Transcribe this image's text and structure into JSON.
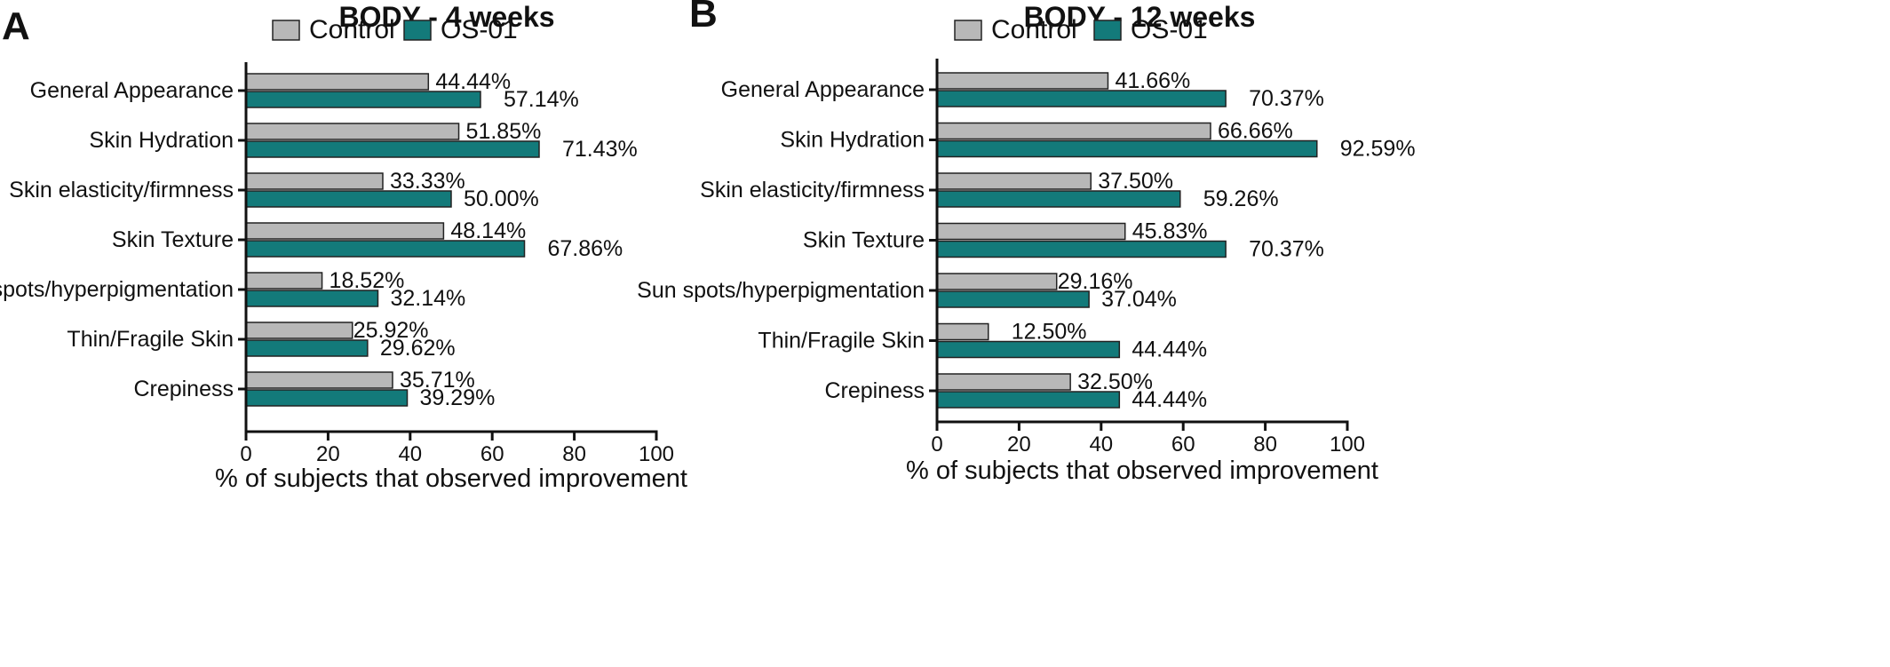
{
  "chart_data": [
    {
      "type": "bar",
      "orientation": "horizontal",
      "panel_letter": "A",
      "title": "BODY - 4 weeks",
      "xlabel": "% of subjects that observed improvement",
      "ylabel": "",
      "xlim": [
        0,
        100
      ],
      "xticks": [
        "0",
        "20",
        "40",
        "60",
        "80",
        "100"
      ],
      "legend_position": "top",
      "categories": [
        "General Appearance",
        "Skin Hydration",
        "Skin elasticity/firmness",
        "Skin Texture",
        "Sun spots/hyperpigmentation",
        "Thin/Fragile Skin",
        "Crepiness"
      ],
      "series": [
        {
          "name": "Control",
          "color": "#b8b8b8",
          "values": [
            44.44,
            51.85,
            33.33,
            48.14,
            18.52,
            25.92,
            35.71
          ],
          "labels": [
            "44.44%",
            "51.85%",
            "33.33%",
            "48.14%",
            "18.52%",
            "25.92%",
            "35.71%"
          ]
        },
        {
          "name": "OS-01",
          "color": "#137a7a",
          "values": [
            57.14,
            71.43,
            50.0,
            67.86,
            32.14,
            29.62,
            39.29
          ],
          "labels": [
            "57.14%",
            "71.43%",
            "50.00%",
            "67.86%",
            "32.14%",
            "29.62%",
            "39.29%"
          ]
        }
      ],
      "grid": false
    },
    {
      "type": "bar",
      "orientation": "horizontal",
      "panel_letter": "B",
      "title": "BODY - 12 weeks",
      "xlabel": "% of subjects that observed improvement",
      "ylabel": "",
      "xlim": [
        0,
        100
      ],
      "xticks": [
        "0",
        "20",
        "40",
        "60",
        "80",
        "100"
      ],
      "legend_position": "top",
      "categories": [
        "General Appearance",
        "Skin Hydration",
        "Skin elasticity/firmness",
        "Skin Texture",
        "Sun spots/hyperpigmentation",
        "Thin/Fragile Skin",
        "Crepiness"
      ],
      "series": [
        {
          "name": "Control",
          "color": "#b8b8b8",
          "values": [
            41.66,
            66.66,
            37.5,
            45.83,
            29.16,
            12.5,
            32.5
          ],
          "labels": [
            "41.66%",
            "66.66%",
            "37.50%",
            "45.83%",
            "29.16%",
            "12.50%",
            "32.50%"
          ]
        },
        {
          "name": "OS-01",
          "color": "#137a7a",
          "values": [
            70.37,
            92.59,
            59.26,
            70.37,
            37.04,
            44.44,
            44.44
          ],
          "labels": [
            "70.37%",
            "92.59%",
            "59.26%",
            "70.37%",
            "37.04%",
            "44.44%",
            "44.44%"
          ]
        }
      ],
      "grid": false
    }
  ]
}
